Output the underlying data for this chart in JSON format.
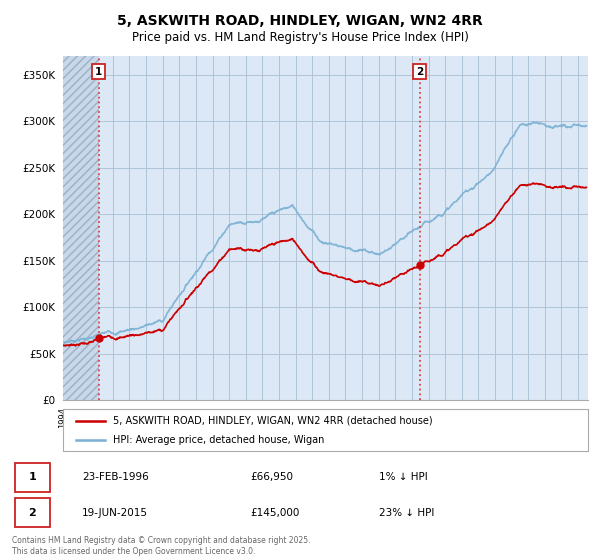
{
  "title": "5, ASKWITH ROAD, HINDLEY, WIGAN, WN2 4RR",
  "subtitle": "Price paid vs. HM Land Registry's House Price Index (HPI)",
  "ylim": [
    0,
    370000
  ],
  "yticks": [
    0,
    50000,
    100000,
    150000,
    200000,
    250000,
    300000,
    350000
  ],
  "sale1_x": 1996.15,
  "sale1_price": 66950,
  "sale1_date_str": "23-FEB-1996",
  "sale1_price_str": "£66,950",
  "sale1_hpi_str": "1% ↓ HPI",
  "sale2_x": 2015.47,
  "sale2_price": 145000,
  "sale2_date_str": "19-JUN-2015",
  "sale2_price_str": "£145,000",
  "sale2_hpi_str": "23% ↓ HPI",
  "legend_label1": "5, ASKWITH ROAD, HINDLEY, WIGAN, WN2 4RR (detached house)",
  "legend_label2": "HPI: Average price, detached house, Wigan",
  "footnote": "Contains HM Land Registry data © Crown copyright and database right 2025.\nThis data is licensed under the Open Government Licence v3.0.",
  "line_color_red": "#cc0000",
  "line_color_blue": "#7ab0d4",
  "chart_bg": "#dce8f5",
  "hatch_color": "#b8c8d8",
  "grid_color": "#b0c4d8",
  "title_fontsize": 10,
  "subtitle_fontsize": 8.5
}
